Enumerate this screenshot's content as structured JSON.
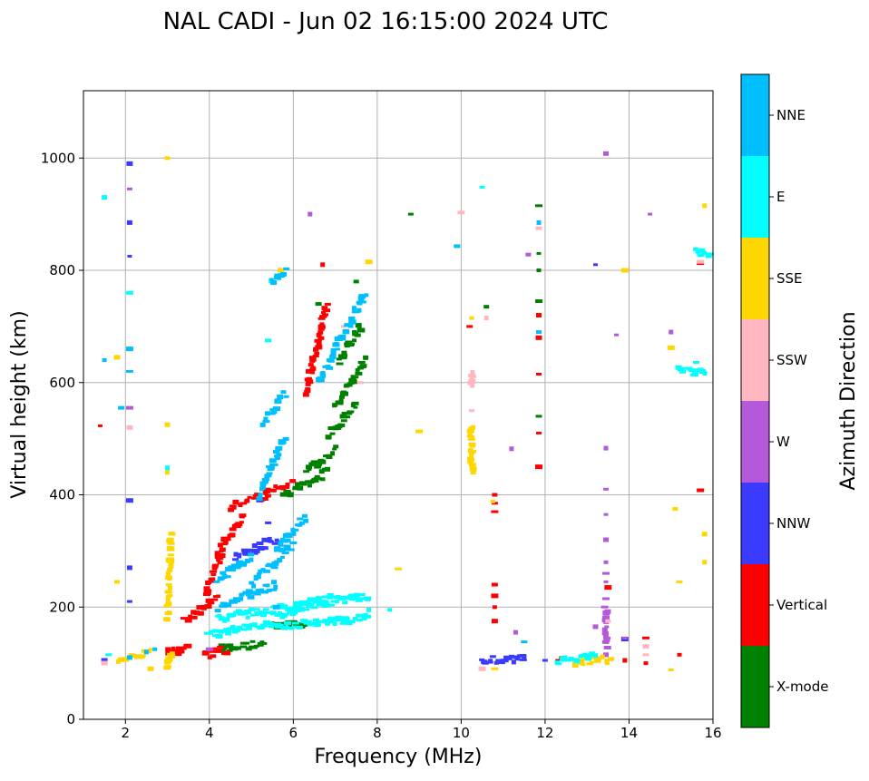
{
  "chart_data": {
    "type": "scatter",
    "title": "NAL CADI - Jun 02 16:15:00 2024 UTC",
    "xlabel": "Frequency (MHz)",
    "ylabel": "Virtual height (km)",
    "xlim": [
      1,
      16
    ],
    "ylim": [
      0,
      1120
    ],
    "xticks": [
      2,
      4,
      6,
      8,
      10,
      12,
      14,
      16
    ],
    "yticks": [
      0,
      200,
      400,
      600,
      800,
      1000
    ],
    "grid": true,
    "colorbar": {
      "label": "Azimuth Direction",
      "categories": [
        "X-mode",
        "Vertical",
        "NNW",
        "W",
        "SSW",
        "SSE",
        "E",
        "NNE"
      ],
      "colors": [
        "#008000",
        "#ff0000",
        "#3b3bff",
        "#b359d9",
        "#ffb6c1",
        "#ffd700",
        "#00ffff",
        "#00bfff"
      ]
    },
    "series": [
      {
        "name": "X-mode",
        "segments": [
          [
            4.3,
            5.3,
            125,
            135
          ],
          [
            5.5,
            6.3,
            165,
            170
          ],
          [
            5.8,
            6.8,
            400,
            440
          ],
          [
            6.3,
            7.0,
            440,
            480
          ],
          [
            6.8,
            7.5,
            500,
            560
          ],
          [
            7.0,
            7.7,
            560,
            640
          ],
          [
            7.1,
            7.6,
            640,
            700
          ]
        ],
        "points": [
          [
            11.85,
            915
          ],
          [
            11.85,
            830
          ],
          [
            11.85,
            800
          ],
          [
            11.85,
            745
          ],
          [
            11.85,
            540
          ],
          [
            7.5,
            780
          ],
          [
            6.6,
            740
          ],
          [
            10.6,
            735
          ],
          [
            8.8,
            900
          ],
          [
            4.3,
            131
          ],
          [
            12.4,
            110
          ]
        ]
      },
      {
        "name": "Vertical",
        "segments": [
          [
            3.0,
            3.5,
            120,
            125
          ],
          [
            3.5,
            4.2,
            180,
            220
          ],
          [
            3.9,
            4.3,
            220,
            300
          ],
          [
            4.2,
            4.8,
            300,
            360
          ],
          [
            4.5,
            5.4,
            380,
            400
          ],
          [
            5.3,
            6.0,
            400,
            420
          ],
          [
            6.3,
            6.8,
            580,
            740
          ],
          [
            3.9,
            4.4,
            115,
            125
          ]
        ],
        "points": [
          [
            10.8,
            400
          ],
          [
            10.8,
            385
          ],
          [
            10.8,
            370
          ],
          [
            10.8,
            240
          ],
          [
            10.8,
            220
          ],
          [
            10.8,
            200
          ],
          [
            10.8,
            175
          ],
          [
            11.85,
            720
          ],
          [
            11.85,
            680
          ],
          [
            11.85,
            615
          ],
          [
            11.85,
            510
          ],
          [
            11.85,
            450
          ],
          [
            10.2,
            700
          ],
          [
            14.4,
            145
          ],
          [
            14.4,
            100
          ],
          [
            13.5,
            235
          ],
          [
            15.7,
            408
          ],
          [
            15.7,
            812
          ],
          [
            12.3,
            105
          ],
          [
            13.9,
            105
          ],
          [
            15.2,
            115
          ],
          [
            1.4,
            523
          ],
          [
            6.7,
            810
          ],
          [
            3.4,
            180
          ]
        ]
      },
      {
        "name": "NNW",
        "segments": [
          [
            4.6,
            5.6,
            290,
            320
          ],
          [
            10.5,
            11.5,
            105,
            110
          ]
        ],
        "points": [
          [
            5.2,
            390
          ],
          [
            5.4,
            350
          ],
          [
            2.1,
            990
          ],
          [
            2.1,
            885
          ],
          [
            2.1,
            825
          ],
          [
            2.1,
            390
          ],
          [
            2.1,
            270
          ],
          [
            2.1,
            210
          ],
          [
            13.2,
            810
          ],
          [
            11.5,
            110
          ],
          [
            12.0,
            105
          ],
          [
            1.5,
            105
          ],
          [
            13.9,
            143
          ]
        ]
      },
      {
        "name": "W",
        "segments": [
          [
            13.45,
            13.45,
            200,
            130
          ]
        ],
        "points": [
          [
            13.45,
            1008
          ],
          [
            13.45,
            483
          ],
          [
            13.45,
            410
          ],
          [
            13.45,
            365
          ],
          [
            13.45,
            320
          ],
          [
            13.45,
            280
          ],
          [
            13.45,
            260
          ],
          [
            13.45,
            245
          ],
          [
            13.45,
            215
          ],
          [
            13.45,
            180
          ],
          [
            13.45,
            115
          ],
          [
            11.2,
            482
          ],
          [
            11.6,
            828
          ],
          [
            13.2,
            165
          ],
          [
            14.5,
            900
          ],
          [
            13.7,
            685
          ],
          [
            15.0,
            690
          ],
          [
            2.1,
            555
          ],
          [
            2.1,
            945
          ],
          [
            4.0,
            125
          ],
          [
            11.3,
            155
          ],
          [
            6.4,
            900
          ],
          [
            13.9,
            145
          ]
        ]
      },
      {
        "name": "SSW",
        "segments": [
          [
            10.25,
            10.25,
            620,
            595
          ]
        ],
        "points": [
          [
            14.4,
            130
          ],
          [
            14.4,
            115
          ],
          [
            10.25,
            550
          ],
          [
            10.0,
            903
          ],
          [
            10.6,
            715
          ],
          [
            11.85,
            875
          ],
          [
            13.5,
            175
          ],
          [
            15.7,
            815
          ],
          [
            1.5,
            100
          ],
          [
            7.6,
            600
          ],
          [
            7.2,
            700
          ],
          [
            10.5,
            90
          ],
          [
            2.1,
            520
          ]
        ]
      },
      {
        "name": "SSE",
        "segments": [
          [
            10.25,
            10.25,
            520,
            445
          ],
          [
            3.0,
            3.1,
            180,
            330
          ],
          [
            3.0,
            3.1,
            90,
            120
          ],
          [
            12.7,
            13.6,
            100,
            108
          ],
          [
            1.8,
            2.6,
            100,
            125
          ]
        ],
        "points": [
          [
            10.25,
            715
          ],
          [
            3.0,
            1000
          ],
          [
            3.0,
            525
          ],
          [
            15.0,
            662
          ],
          [
            15.1,
            375
          ],
          [
            15.2,
            245
          ],
          [
            15.8,
            280
          ],
          [
            15.8,
            330
          ],
          [
            15.8,
            915
          ],
          [
            15.0,
            88
          ],
          [
            10.8,
            90
          ],
          [
            9.0,
            513
          ],
          [
            8.5,
            268
          ],
          [
            7.8,
            815
          ],
          [
            13.9,
            800
          ],
          [
            3.0,
            440
          ],
          [
            2.6,
            90
          ],
          [
            5.7,
            800
          ],
          [
            1.8,
            645
          ],
          [
            1.8,
            245
          ],
          [
            2.4,
            110
          ],
          [
            10.75,
            388
          ]
        ]
      },
      {
        "name": "E",
        "segments": [
          [
            4.2,
            7.8,
            180,
            220
          ],
          [
            4.0,
            5.5,
            150,
            170
          ],
          [
            5.5,
            7.8,
            165,
            180
          ],
          [
            5.6,
            6.3,
            185,
            200
          ],
          [
            6.0,
            6.9,
            200,
            215
          ],
          [
            15.2,
            15.8,
            620,
            620
          ],
          [
            15.6,
            15.9,
            832,
            832
          ],
          [
            12.3,
            13.2,
            105,
            110
          ]
        ],
        "points": [
          [
            8.3,
            195
          ],
          [
            5.4,
            675
          ],
          [
            5.5,
            780
          ],
          [
            10.5,
            948
          ],
          [
            1.5,
            930
          ],
          [
            15.6,
            636
          ],
          [
            7.8,
            195
          ],
          [
            2.1,
            760
          ],
          [
            3.0,
            448
          ],
          [
            1.6,
            115
          ]
        ]
      },
      {
        "name": "NNE",
        "segments": [
          [
            4.2,
            5.0,
            250,
            290
          ],
          [
            5.0,
            6.0,
            240,
            310
          ],
          [
            5.6,
            6.3,
            300,
            360
          ],
          [
            5.2,
            5.8,
            400,
            500
          ],
          [
            5.3,
            5.8,
            530,
            580
          ],
          [
            5.5,
            5.8,
            780,
            800
          ],
          [
            6.6,
            7.7,
            600,
            760
          ],
          [
            4.2,
            5.6,
            200,
            240
          ]
        ],
        "points": [
          [
            11.85,
            885
          ],
          [
            11.85,
            690
          ],
          [
            9.9,
            843
          ],
          [
            11.5,
            138
          ],
          [
            2.1,
            110
          ],
          [
            1.5,
            640
          ],
          [
            1.9,
            555
          ],
          [
            2.1,
            660
          ],
          [
            2.1,
            620
          ],
          [
            2.5,
            120
          ],
          [
            2.7,
            125
          ],
          [
            5.6,
            200
          ]
        ]
      }
    ]
  }
}
